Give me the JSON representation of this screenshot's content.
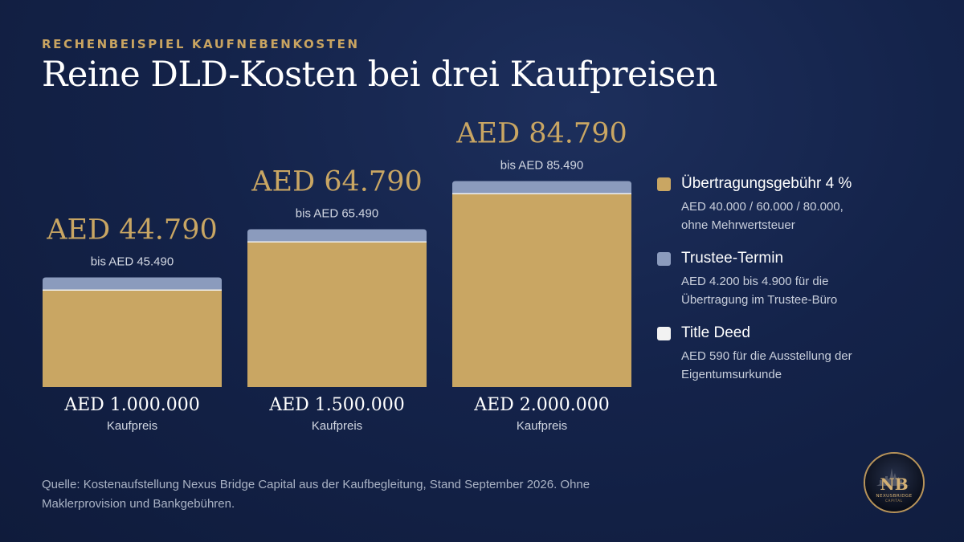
{
  "header": {
    "eyebrow": "RECHENBEISPIEL KAUFNEBENKOSTEN",
    "title": "Reine DLD-Kosten bei drei Kaufpreisen"
  },
  "colors": {
    "transfer_fee": "#c9a663",
    "trustee": "#8b9bbd",
    "title_deed": "#f2f2f2",
    "value_text": "#c9a663"
  },
  "chart_data": {
    "type": "bar",
    "stacked": true,
    "categories": [
      "AED 1.000.000",
      "AED 1.500.000",
      "AED 2.000.000"
    ],
    "category_sublabel": "Kaufpreis",
    "series": [
      {
        "name": "Übertragungsgebühr 4 %",
        "key": "transfer_fee",
        "values": [
          40000,
          60000,
          80000
        ]
      },
      {
        "name": "Title Deed",
        "key": "title_deed",
        "values": [
          590,
          590,
          590
        ]
      },
      {
        "name": "Trustee-Termin",
        "key": "trustee",
        "values": [
          4900,
          4900,
          4900
        ]
      }
    ],
    "totals": [
      "AED 44.790",
      "AED 64.790",
      "AED 84.790"
    ],
    "totals_range": [
      "bis AED 45.490",
      "bis AED 65.490",
      "bis AED 85.490"
    ],
    "ylim": [
      0,
      90000
    ],
    "grid": false,
    "legend": "right"
  },
  "legend": {
    "items": [
      {
        "key": "transfer_fee",
        "title": "Übertragungsgebühr 4 %",
        "desc_lines": [
          "AED 40.000 / 60.000 / 80.000,",
          "ohne Mehrwertsteuer"
        ]
      },
      {
        "key": "trustee",
        "title": "Trustee-Termin",
        "desc_lines": [
          "AED 4.200 bis 4.900 für die",
          "Übertragung im Trustee-Büro"
        ]
      },
      {
        "key": "title_deed",
        "title": "Title Deed",
        "desc_lines": [
          "AED 590 für die Ausstellung der",
          "Eigentumsurkunde"
        ]
      }
    ]
  },
  "footer": {
    "source_lines": [
      "Quelle: Kostenaufstellung Nexus Bridge Capital aus der Kaufbegleitung, Stand September 2026. Ohne",
      "Maklerprovision und Bankgebühren."
    ]
  },
  "logo": {
    "monogram": "NB",
    "name": "NEXUSBRIDGE",
    "tagline": "CAPITAL"
  }
}
